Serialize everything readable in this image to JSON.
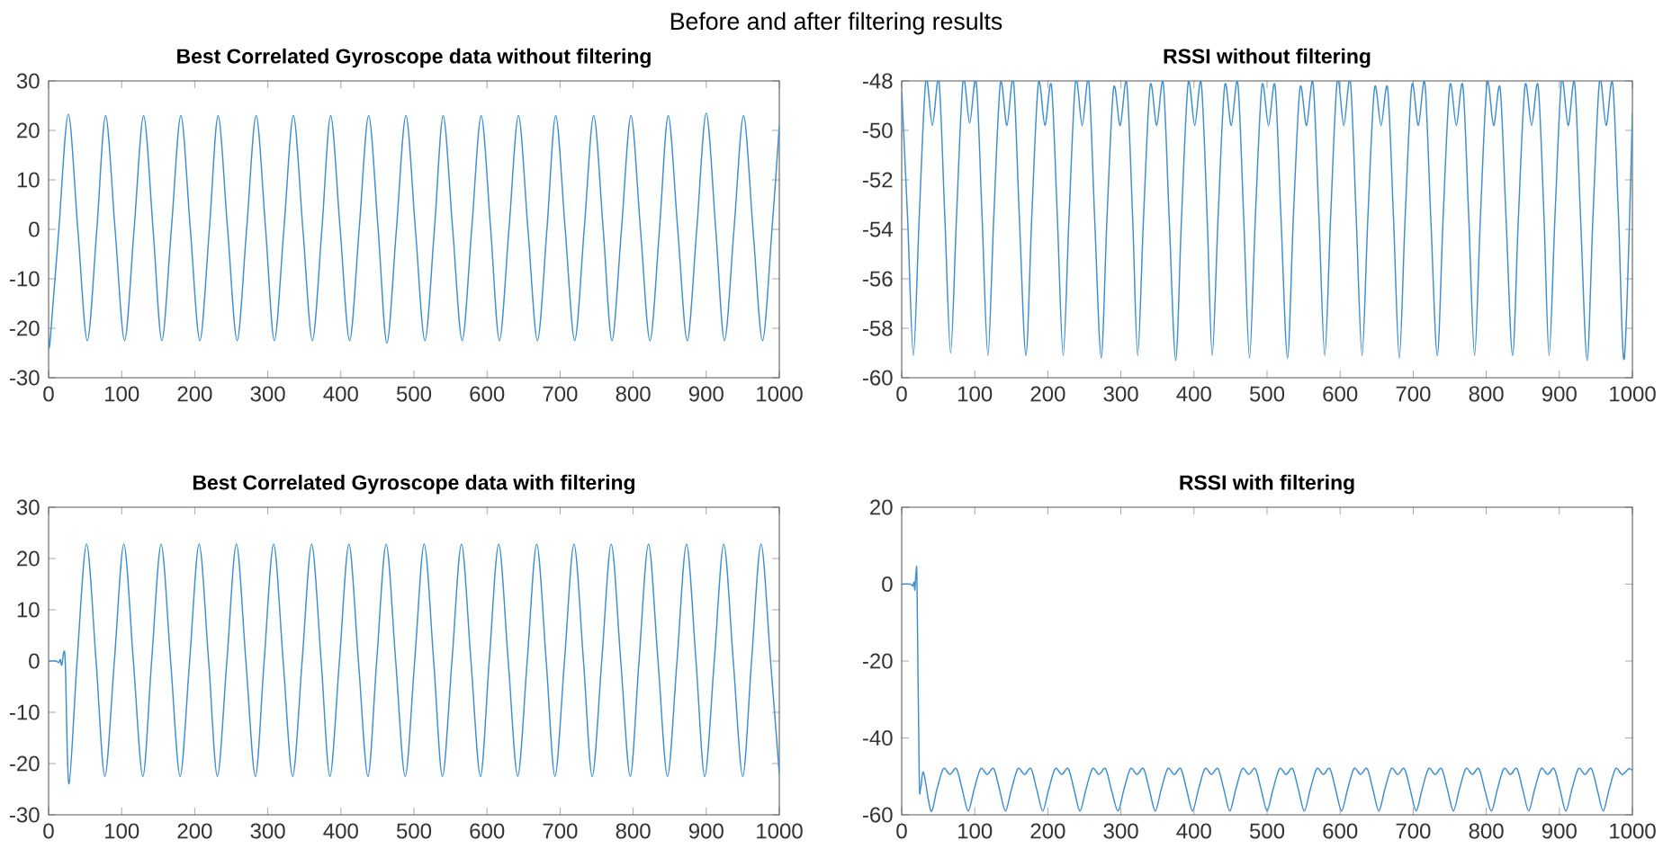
{
  "chart_data": [
    {
      "type": "line",
      "title": "Best Correlated Gyroscope data without filtering",
      "annotations": [
        "Before and after filtering results"
      ],
      "x": [
        0,
        2,
        14,
        27,
        40,
        53,
        66,
        78,
        91,
        104,
        117,
        130,
        143,
        155,
        168,
        181,
        194,
        207,
        220,
        232,
        245,
        258,
        271,
        284,
        297,
        309,
        322,
        335,
        348,
        361,
        374,
        386,
        399,
        412,
        425,
        438,
        451,
        463,
        476,
        489,
        502,
        515,
        528,
        540,
        553,
        566,
        579,
        592,
        605,
        617,
        630,
        643,
        656,
        669,
        682,
        694,
        707,
        720,
        733,
        746,
        759,
        771,
        784,
        797,
        810,
        823,
        836,
        848,
        861,
        874,
        887,
        900,
        913,
        925,
        938,
        951,
        964,
        977,
        990,
        1000
      ],
      "series": [
        {
          "color": "#3d8fd1",
          "values": [
            -22,
            -22.7,
            0,
            23.3,
            0,
            -22.5,
            0,
            23,
            0,
            -22.5,
            0,
            23,
            0,
            -22.5,
            0,
            23,
            0,
            -22.5,
            0,
            23,
            0,
            -22.5,
            0,
            23,
            0,
            -22.5,
            0,
            23,
            0,
            -22.5,
            0,
            23,
            0,
            -22.5,
            0,
            23,
            0,
            -23,
            0,
            23,
            0,
            -22.5,
            0,
            23,
            0,
            -22.5,
            0,
            23,
            0,
            -22.5,
            0,
            23,
            0,
            -22.5,
            0,
            23,
            0,
            -22.5,
            0,
            23,
            0,
            -22.5,
            0,
            23,
            0,
            -22.5,
            0,
            23,
            0,
            -22.5,
            0,
            23.5,
            0,
            -22.5,
            0,
            23,
            0,
            -22.5,
            0,
            21
          ]
        }
      ],
      "xlim": [
        0,
        1000
      ],
      "xticks": [
        0,
        100,
        200,
        300,
        400,
        500,
        600,
        700,
        800,
        900,
        1000
      ],
      "ylim": [
        -30,
        30
      ],
      "yticks": [
        -30,
        -20,
        -10,
        0,
        10,
        20,
        30
      ]
    },
    {
      "type": "line",
      "title": "RSSI without filtering",
      "x": [
        0,
        8,
        16,
        24,
        33,
        42,
        51,
        59,
        67,
        75,
        84,
        93,
        102,
        110,
        118,
        126,
        135,
        144,
        153,
        161,
        170,
        178,
        187,
        196,
        205,
        213,
        221,
        229,
        238,
        247,
        256,
        264,
        273,
        281,
        290,
        299,
        308,
        316,
        323,
        331,
        340,
        349,
        358,
        366,
        375,
        383,
        392,
        401,
        410,
        418,
        425,
        433,
        442,
        451,
        460,
        468,
        476,
        484,
        493,
        502,
        511,
        519,
        528,
        536,
        545,
        554,
        563,
        571,
        579,
        587,
        596,
        605,
        614,
        622,
        630,
        638,
        647,
        656,
        665,
        673,
        681,
        689,
        698,
        707,
        716,
        724,
        733,
        741,
        750,
        759,
        768,
        776,
        784,
        792,
        801,
        810,
        819,
        827,
        836,
        844,
        853,
        862,
        871,
        879,
        886,
        894,
        903,
        912,
        921,
        929,
        938,
        946,
        955,
        964,
        973,
        981,
        989,
        1000
      ],
      "series": [
        {
          "color": "#3d8fd1",
          "values": [
            -48.4,
            -53.5,
            -59.1,
            -53.5,
            -48.0,
            -49.8,
            -48.0,
            -53.5,
            -59.0,
            -53.5,
            -48.0,
            -49.7,
            -48.0,
            -53.5,
            -59.1,
            -53.5,
            -48.1,
            -49.8,
            -48.0,
            -53.5,
            -59.1,
            -53.5,
            -48.1,
            -49.8,
            -48.2,
            -53.5,
            -59.1,
            -53.5,
            -48.0,
            -49.8,
            -48.0,
            -53.5,
            -59.2,
            -53.5,
            -48.3,
            -49.8,
            -48.1,
            -53.5,
            -59.1,
            -53.5,
            -48.2,
            -49.8,
            -48.1,
            -53.5,
            -59.3,
            -53.5,
            -48.1,
            -49.8,
            -48.1,
            -53.5,
            -59.1,
            -53.5,
            -48.2,
            -49.8,
            -48.1,
            -53.5,
            -59.2,
            -53.5,
            -48.2,
            -49.8,
            -48.2,
            -53.5,
            -59.2,
            -53.5,
            -48.3,
            -49.8,
            -48.1,
            -53.5,
            -59.1,
            -53.5,
            -48.0,
            -49.8,
            -48.0,
            -53.5,
            -59.1,
            -53.5,
            -48.3,
            -49.8,
            -48.3,
            -53.5,
            -59.2,
            -53.5,
            -48.2,
            -49.8,
            -48.1,
            -53.5,
            -59.1,
            -53.5,
            -48.2,
            -49.8,
            -48.2,
            -53.5,
            -59.1,
            -53.5,
            -48.1,
            -49.8,
            -48.3,
            -53.5,
            -59.1,
            -53.5,
            -48.2,
            -49.8,
            -48.2,
            -53.5,
            -59.1,
            -53.5,
            -48.0,
            -49.8,
            -48.1,
            -53.5,
            -59.3,
            -53.5,
            -48.0,
            -49.8,
            -48.1,
            -53.5,
            -59.2,
            -49.3
          ]
        }
      ],
      "xlim": [
        0,
        1000
      ],
      "xticks": [
        0,
        100,
        200,
        300,
        400,
        500,
        600,
        700,
        800,
        900,
        1000
      ],
      "ylim": [
        -60,
        -48
      ],
      "yticks": [
        -60,
        -58,
        -56,
        -54,
        -52,
        -50,
        -48
      ]
    },
    {
      "type": "line",
      "title": "Best Correlated Gyroscope data with filtering",
      "x": [
        0,
        10,
        14,
        16,
        18,
        21,
        23,
        28,
        39,
        52,
        65,
        77,
        90,
        103,
        116,
        129,
        141,
        154,
        167,
        180,
        193,
        206,
        219,
        231,
        244,
        257,
        270,
        283,
        295,
        308,
        321,
        334,
        347,
        360,
        373,
        385,
        398,
        411,
        424,
        437,
        449,
        462,
        475,
        488,
        501,
        514,
        527,
        539,
        552,
        565,
        578,
        591,
        603,
        616,
        629,
        642,
        655,
        668,
        681,
        693,
        706,
        719,
        732,
        744,
        757,
        770,
        783,
        796,
        808,
        821,
        834,
        847,
        860,
        873,
        886,
        898,
        911,
        924,
        937,
        950,
        962,
        975,
        988,
        1000
      ],
      "series": [
        {
          "color": "#3d8fd1",
          "values": [
            0,
            0,
            -0.3,
            0.3,
            -0.8,
            1.8,
            -1,
            -24,
            0,
            22.8,
            0,
            -22.5,
            0,
            22.8,
            0,
            -22.5,
            0,
            22.8,
            0,
            -22.5,
            0,
            22.8,
            0,
            -22.5,
            0,
            22.8,
            0,
            -22.5,
            0,
            22.8,
            0,
            -22.5,
            0,
            22.8,
            0,
            -22.5,
            0,
            22.8,
            0,
            -22.5,
            0,
            22.8,
            0,
            -22.5,
            0,
            22.8,
            0,
            -22.5,
            0,
            22.8,
            0,
            -22.5,
            0,
            22.8,
            0,
            -22.5,
            0,
            22.8,
            0,
            -22.5,
            0,
            22.8,
            0,
            -22.5,
            0,
            22.8,
            0,
            -22.5,
            0,
            22.8,
            0,
            -22.5,
            0,
            22.8,
            0,
            -22.5,
            0,
            22.8,
            0,
            -22.5,
            0,
            22.8,
            0,
            -22
          ]
        }
      ],
      "xlim": [
        0,
        1000
      ],
      "xticks": [
        0,
        100,
        200,
        300,
        400,
        500,
        600,
        700,
        800,
        900,
        1000
      ],
      "ylim": [
        -30,
        30
      ],
      "yticks": [
        -30,
        -20,
        -10,
        0,
        10,
        20,
        30
      ]
    },
    {
      "type": "line",
      "title": "RSSI with filtering",
      "x": [
        0,
        12,
        15,
        17,
        18,
        20,
        21,
        24,
        26,
        30,
        40,
        48,
        57,
        66,
        75,
        83,
        91,
        99,
        108,
        117,
        126,
        134,
        142,
        150,
        159,
        168,
        177,
        185,
        193,
        201,
        210,
        219,
        228,
        236,
        244,
        252,
        261,
        270,
        279,
        287,
        296,
        304,
        313,
        322,
        331,
        339,
        347,
        355,
        364,
        373,
        382,
        390,
        398,
        406,
        415,
        424,
        433,
        441,
        449,
        457,
        466,
        475,
        484,
        492,
        500,
        508,
        517,
        526,
        535,
        543,
        551,
        559,
        568,
        577,
        586,
        594,
        602,
        610,
        619,
        628,
        637,
        645,
        653,
        661,
        670,
        679,
        688,
        696,
        704,
        712,
        721,
        730,
        739,
        747,
        755,
        763,
        772,
        781,
        790,
        798,
        807,
        815,
        824,
        833,
        842,
        850,
        858,
        866,
        875,
        884,
        893,
        901,
        909,
        917,
        926,
        935,
        944,
        952,
        960,
        968,
        977,
        986,
        995,
        1000
      ],
      "series": [
        {
          "color": "#3d8fd1",
          "values": [
            0,
            0,
            -0.5,
            0.5,
            -1.5,
            4,
            -1,
            -50,
            -53,
            -49,
            -59,
            -53.5,
            -48,
            -49.5,
            -48,
            -53.5,
            -59,
            -53.5,
            -48,
            -49.5,
            -48,
            -53.5,
            -59,
            -53.5,
            -48,
            -49.5,
            -48,
            -53.5,
            -59,
            -53.5,
            -48,
            -49.5,
            -48,
            -53.5,
            -59,
            -53.5,
            -48,
            -49.5,
            -48,
            -53.5,
            -59,
            -53.5,
            -48,
            -49.5,
            -48,
            -53.5,
            -59,
            -53.5,
            -48,
            -49.5,
            -48,
            -53.5,
            -59,
            -53.5,
            -48,
            -49.5,
            -48,
            -53.5,
            -59,
            -53.5,
            -48,
            -49.5,
            -48,
            -53.5,
            -59,
            -53.5,
            -48,
            -49.5,
            -48,
            -53.5,
            -59,
            -53.5,
            -48,
            -49.5,
            -48,
            -53.5,
            -59,
            -53.5,
            -48,
            -49.5,
            -48,
            -53.5,
            -59,
            -53.5,
            -48,
            -49.5,
            -48,
            -53.5,
            -59,
            -53.5,
            -48,
            -49.5,
            -48,
            -53.5,
            -59,
            -53.5,
            -48,
            -49.5,
            -48,
            -53.5,
            -59,
            -53.5,
            -48,
            -49.5,
            -48,
            -53.5,
            -59,
            -53.5,
            -48,
            -49.5,
            -48,
            -53.5,
            -59,
            -53.5,
            -48,
            -49.5,
            -48,
            -53.5,
            -59,
            -53.5,
            -48,
            -49.5,
            -48,
            -48.5
          ]
        }
      ],
      "xlim": [
        0,
        1000
      ],
      "xticks": [
        0,
        100,
        200,
        300,
        400,
        500,
        600,
        700,
        800,
        900,
        1000
      ],
      "ylim": [
        -60,
        20
      ],
      "yticks": [
        -60,
        -40,
        -20,
        0,
        20
      ]
    }
  ]
}
